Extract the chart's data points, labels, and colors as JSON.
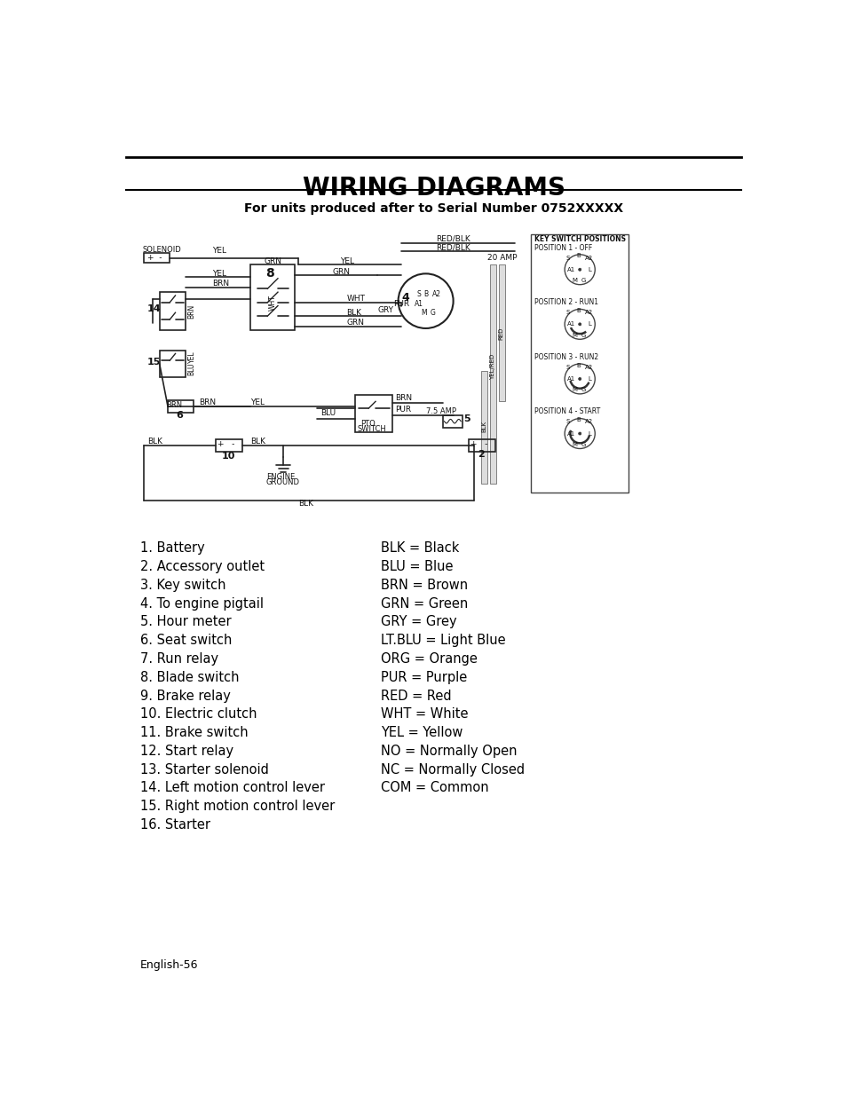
{
  "title": "WIRING DIAGRAMS",
  "subtitle": "For units produced after to Serial Number 0752XXXXX",
  "left_legend": [
    "1. Battery",
    "2. Accessory outlet",
    "3. Key switch",
    "4. To engine pigtail",
    "5. Hour meter",
    "6. Seat switch",
    "7. Run relay",
    "8. Blade switch",
    "9. Brake relay",
    "10. Electric clutch",
    "11. Brake switch",
    "12. Start relay",
    "13. Starter solenoid",
    "14. Left motion control lever",
    "15. Right motion control lever",
    "16. Starter"
  ],
  "right_legend": [
    "BLK = Black",
    "BLU = Blue",
    "BRN = Brown",
    "GRN = Green",
    "GRY = Grey",
    "LT.BLU = Light Blue",
    "ORG = Orange",
    "PUR = Purple",
    "RED = Red",
    "WHT = White",
    "YEL = Yellow",
    "NO = Normally Open",
    "NC = Normally Closed",
    "COM = Common"
  ],
  "footer": "English-56",
  "bg_color": "#ffffff",
  "text_color": "#000000"
}
